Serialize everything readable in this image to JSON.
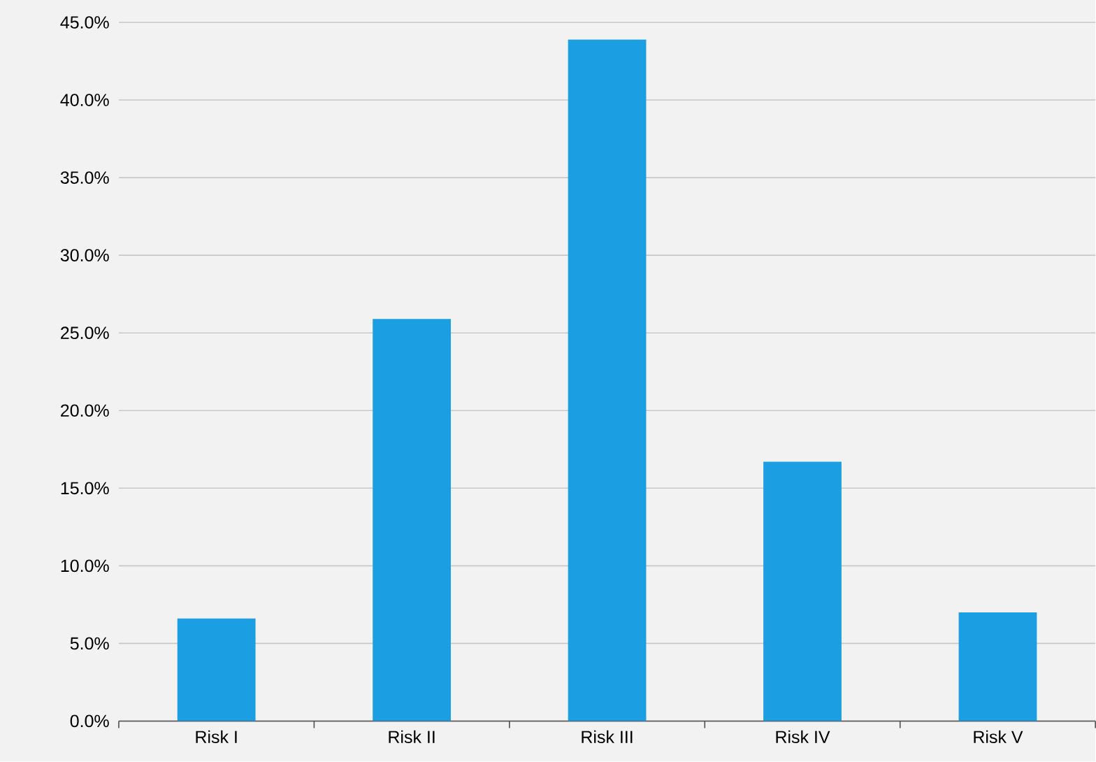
{
  "chart_data": {
    "type": "bar",
    "categories": [
      "Risk I",
      "Risk II",
      "Risk III",
      "Risk IV",
      "Risk V"
    ],
    "values": [
      6.6,
      25.9,
      43.9,
      16.7,
      7.0
    ],
    "color": "#1b9ee2",
    "ylim": [
      0,
      45
    ],
    "yticks": [
      {
        "value": 0,
        "label": "0.0%"
      },
      {
        "value": 5,
        "label": "5.0%"
      },
      {
        "value": 10,
        "label": "10.0%"
      },
      {
        "value": 15,
        "label": "15.0%"
      },
      {
        "value": 20,
        "label": "20.0%"
      },
      {
        "value": 25,
        "label": "25.0%"
      },
      {
        "value": 30,
        "label": "30.0%"
      },
      {
        "value": 35,
        "label": "35.0%"
      },
      {
        "value": 40,
        "label": "40.0%"
      },
      {
        "value": 45,
        "label": "45.0%"
      }
    ],
    "grid": "y"
  }
}
